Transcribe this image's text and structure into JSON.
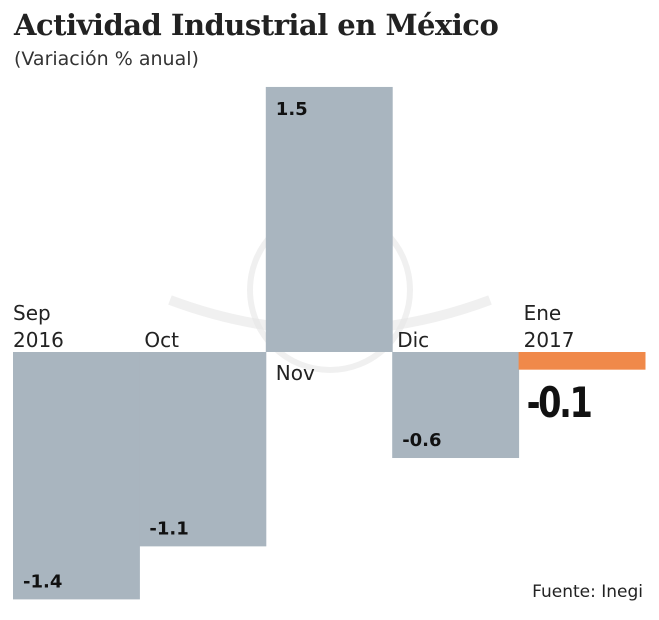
{
  "chart_data": {
    "type": "bar",
    "title": "Actividad Industrial en México",
    "subtitle": "(Variación % anual)",
    "categories": [
      "Sep\n2016",
      "Oct",
      "Nov",
      "Dic",
      "Ene\n2017"
    ],
    "values": [
      -1.4,
      -1.1,
      1.5,
      -0.6,
      -0.1
    ],
    "value_labels": [
      "-1.4",
      "-1.1",
      "1.5",
      "-0.6",
      "-0.1"
    ],
    "colors": [
      "#a9b5bf",
      "#a9b5bf",
      "#a9b5bf",
      "#a9b5bf",
      "#f0894a"
    ],
    "highlight_index": 4,
    "ylim": [
      -1.4,
      1.5
    ],
    "grid": false,
    "source": "Fuente: Inegi"
  }
}
